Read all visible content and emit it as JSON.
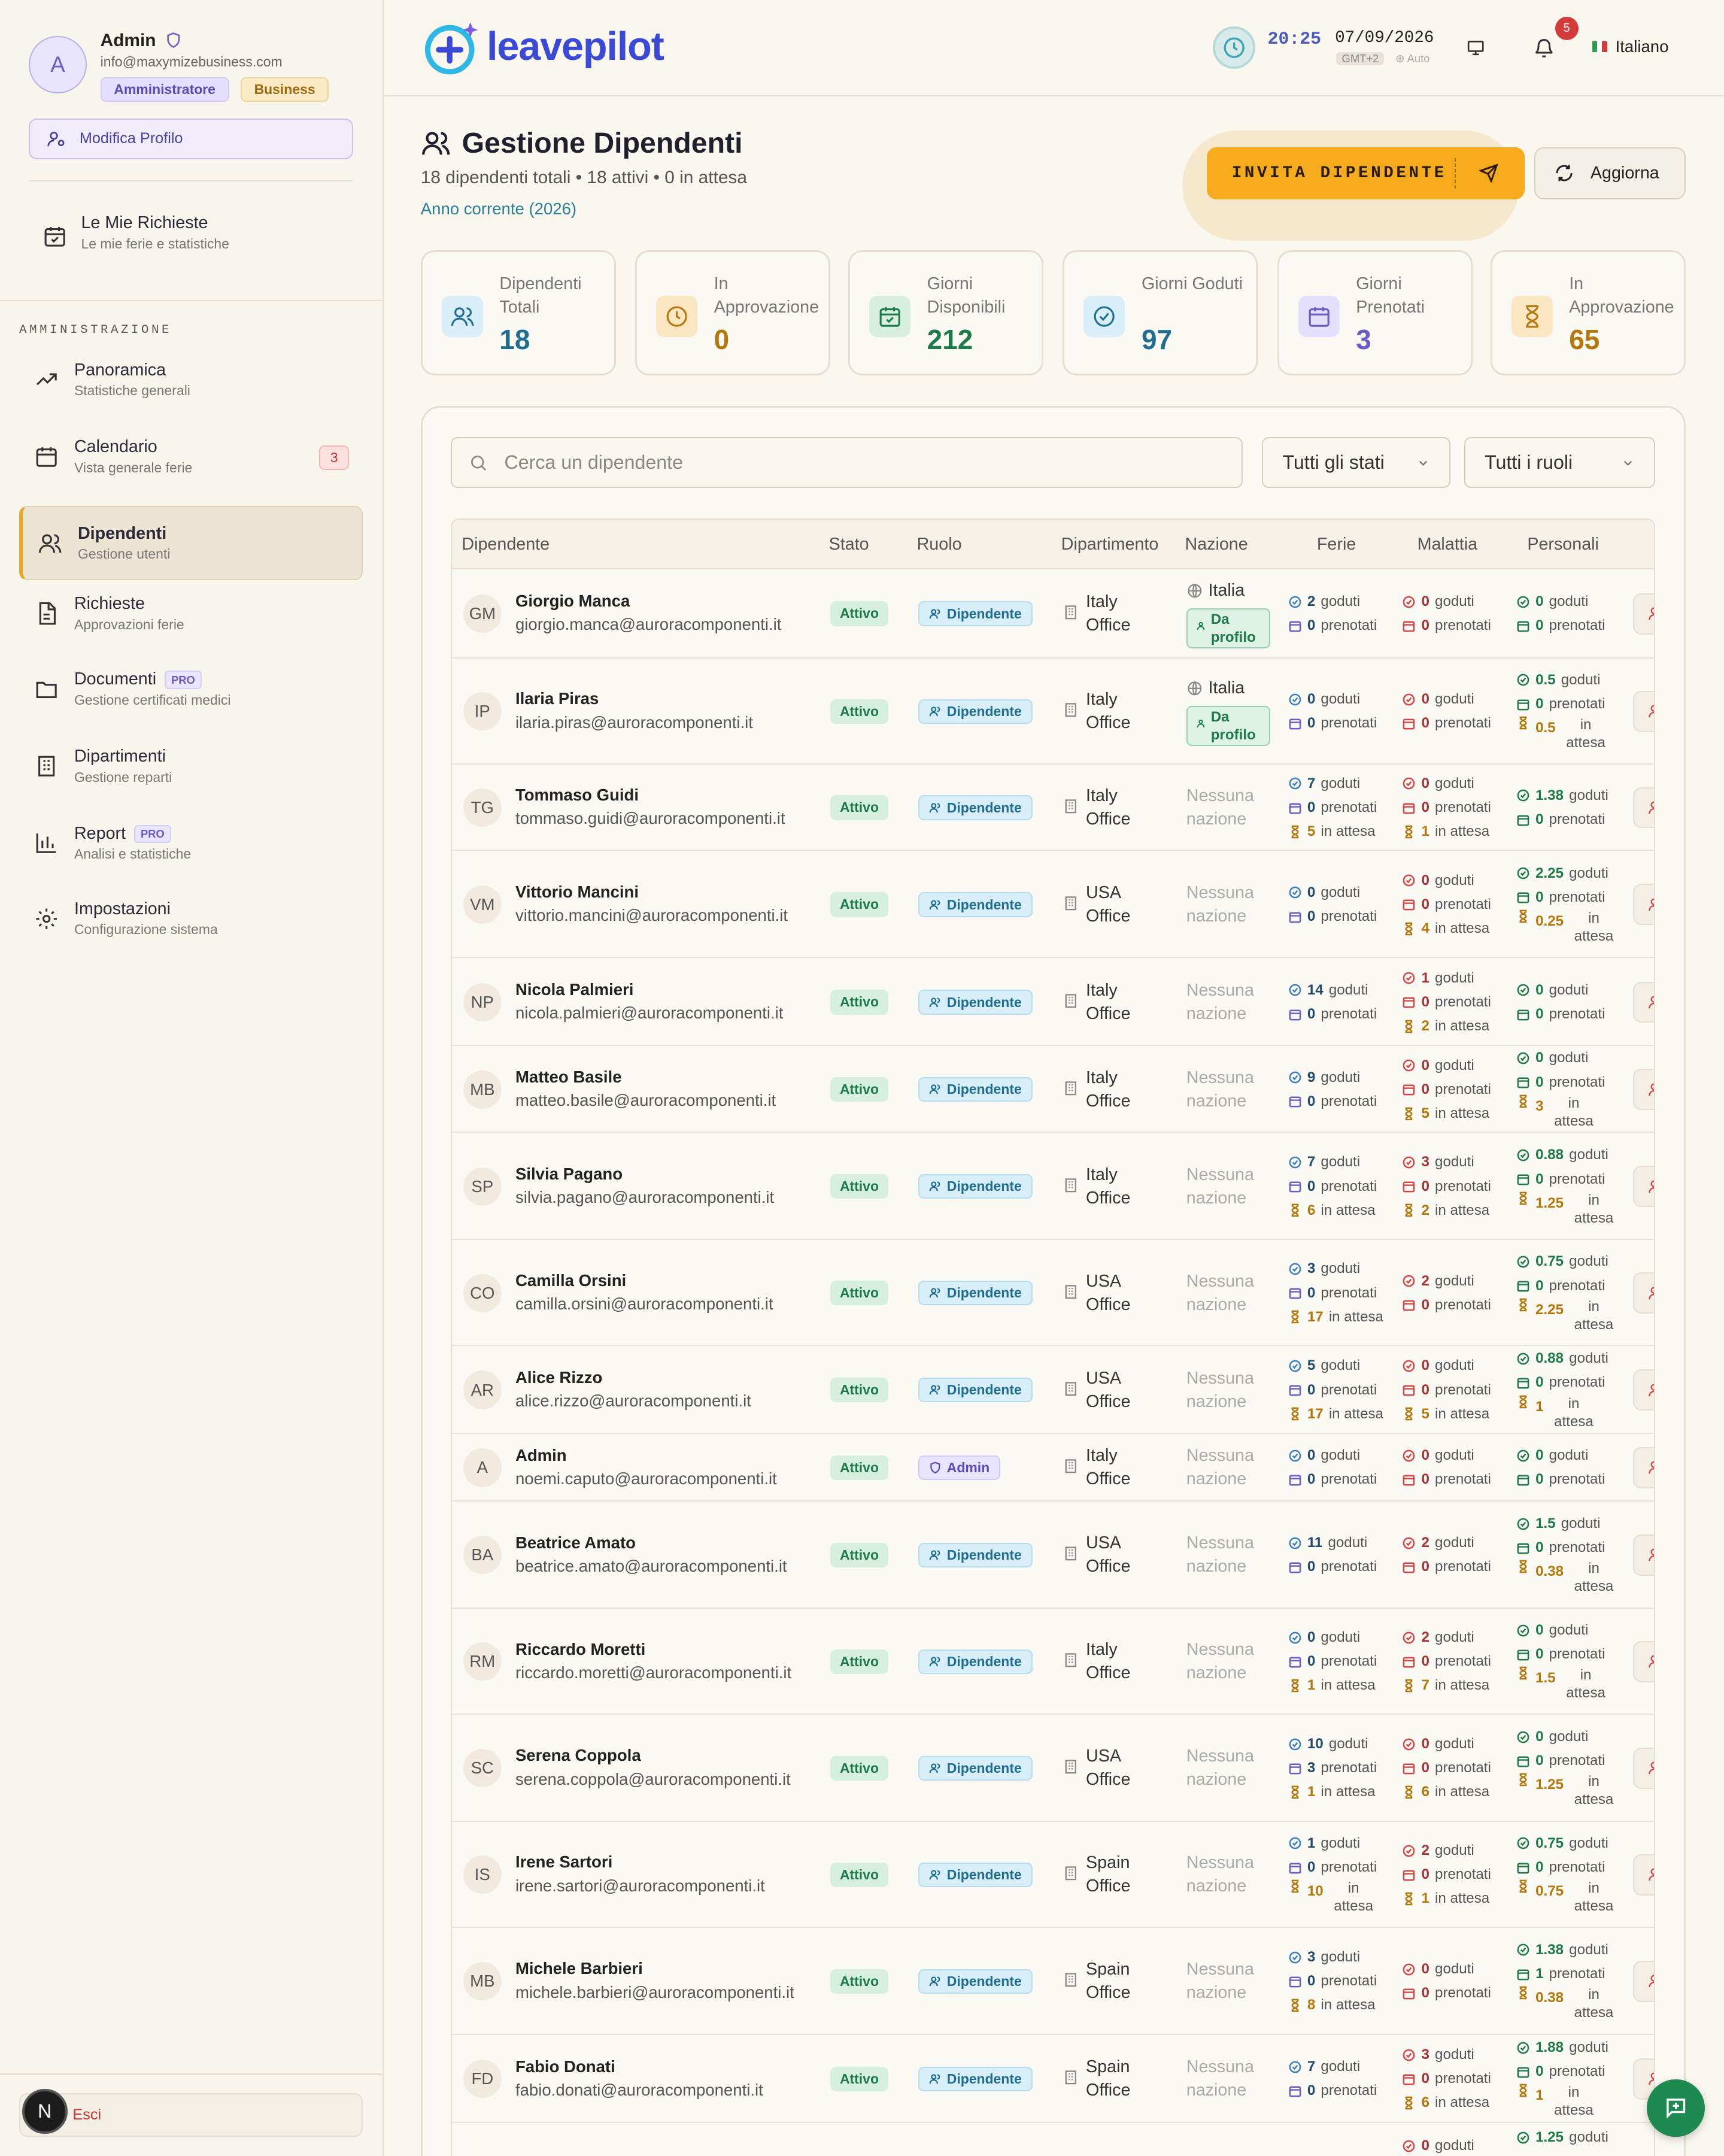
{
  "profile": {
    "initial": "A",
    "name": "Admin",
    "email": "info@maxymizebusiness.com",
    "role_tag": "Amministratore",
    "plan_tag": "Business",
    "edit_label": "Modifica Profilo"
  },
  "my_requests": {
    "title": "Le Mie Richieste",
    "subtitle": "Le mie ferie e statistiche"
  },
  "admin_heading": "AMMINISTRAZIONE",
  "nav": [
    {
      "title": "Panoramica",
      "subtitle": "Statistiche generali",
      "icon": "trending-up-icon"
    },
    {
      "title": "Calendario",
      "subtitle": "Vista generale ferie",
      "icon": "calendar-icon",
      "badge": "3"
    },
    {
      "title": "Dipendenti",
      "subtitle": "Gestione utenti",
      "icon": "users-icon",
      "active": true
    },
    {
      "title": "Richieste",
      "subtitle": "Approvazioni ferie",
      "icon": "document-icon"
    },
    {
      "title": "Documenti",
      "subtitle": "Gestione certificati medici",
      "icon": "folder-icon",
      "pro": "PRO"
    },
    {
      "title": "Dipartimenti",
      "subtitle": "Gestione reparti",
      "icon": "building-icon"
    },
    {
      "title": "Report",
      "subtitle": "Analisi e statistiche",
      "icon": "bar-chart-icon",
      "pro": "PRO"
    },
    {
      "title": "Impostazioni",
      "subtitle": "Configurazione sistema",
      "icon": "gear-icon"
    }
  ],
  "logout_label": "Esci",
  "n_badge": "N",
  "topbar": {
    "logo": "leavepilot",
    "time": "20:25",
    "date": "07/09/2026",
    "tz": "GMT+2",
    "tz_mode": "Auto",
    "notifications": "5",
    "language": "Italiano"
  },
  "page": {
    "title": "Gestione Dipendenti",
    "subtitle": "18 dipendenti totali • 18 attivi • 0 in attesa",
    "year": "Anno corrente (2026)",
    "invite_label": "INVITA DIPENDENTE",
    "refresh_label": "Aggiorna"
  },
  "stats": [
    {
      "label": "Dipendenti Totali",
      "value": "18",
      "color": "#1f6d90",
      "bg": "#d8eef8",
      "icon": "users-icon"
    },
    {
      "label": "In Approvazione",
      "value": "0",
      "color": "#b5760a",
      "bg": "#fbe6c2",
      "icon": "clock-icon"
    },
    {
      "label": "Giorni Disponibili",
      "value": "212",
      "color": "#1d7a4a",
      "bg": "#d6efdf",
      "icon": "calendar-check-icon"
    },
    {
      "label": "Giorni Goduti",
      "value": "97",
      "color": "#1f6d90",
      "bg": "#d8eef8",
      "icon": "check-circle-icon"
    },
    {
      "label": "Giorni Prenotati",
      "value": "3",
      "color": "#6a5bc7",
      "bg": "#e6e0ff",
      "icon": "calendar-icon"
    },
    {
      "label": "In Approvazione",
      "value": "65",
      "color": "#b5760a",
      "bg": "#fbe6c2",
      "icon": "hourglass-icon"
    }
  ],
  "filters": {
    "search_placeholder": "Cerca un dipendente",
    "status": "Tutti gli stati",
    "role": "Tutti i ruoli"
  },
  "columns": [
    "Dipendente",
    "Stato",
    "Ruolo",
    "Dipartimento",
    "Nazione",
    "Ferie",
    "Malattia",
    "Personali"
  ],
  "labels": {
    "active": "Attivo",
    "goduti": "goduti",
    "prenotati": "prenotati",
    "in_attesa": "in attesa",
    "no_nation": [
      "Nessuna",
      "nazione"
    ],
    "profile_pill": [
      "Da",
      "profilo"
    ],
    "office": "Office"
  },
  "employees": [
    {
      "ini": "GM",
      "name": "Giorgio Manca",
      "email": "giorgio.manca@auroracomponenti.it",
      "role": "Dipendente",
      "dept": "Italy",
      "nation": "Italia",
      "ferie": {
        "g": "2",
        "p": "0"
      },
      "sick": {
        "g": "0",
        "p": "0"
      },
      "pers": {
        "g": "0",
        "p": "0"
      }
    },
    {
      "ini": "IP",
      "name": "Ilaria Piras",
      "email": "ilaria.piras@auroracomponenti.it",
      "role": "Dipendente",
      "dept": "Italy",
      "nation": "Italia",
      "ferie": {
        "g": "0",
        "p": "0"
      },
      "sick": {
        "g": "0",
        "p": "0"
      },
      "pers": {
        "g": "0.5",
        "p": "0",
        "w": "0.5"
      }
    },
    {
      "ini": "TG",
      "name": "Tommaso Guidi",
      "email": "tommaso.guidi@auroracomponenti.it",
      "role": "Dipendente",
      "dept": "Italy",
      "ferie": {
        "g": "7",
        "p": "0",
        "w": "5"
      },
      "sick": {
        "g": "0",
        "p": "0",
        "w": "1"
      },
      "pers": {
        "g": "1.38",
        "p": "0"
      }
    },
    {
      "ini": "VM",
      "name": "Vittorio Mancini",
      "email": "vittorio.mancini@auroracomponenti.it",
      "role": "Dipendente",
      "dept": "USA",
      "ferie": {
        "g": "0",
        "p": "0"
      },
      "sick": {
        "g": "0",
        "p": "0",
        "w": "4"
      },
      "pers": {
        "g": "2.25",
        "p": "0",
        "w": "0.25"
      }
    },
    {
      "ini": "NP",
      "name": "Nicola Palmieri",
      "email": "nicola.palmieri@auroracomponenti.it",
      "role": "Dipendente",
      "dept": "Italy",
      "ferie": {
        "g": "14",
        "p": "0"
      },
      "sick": {
        "g": "1",
        "p": "0",
        "w": "2"
      },
      "pers": {
        "g": "0",
        "p": "0"
      }
    },
    {
      "ini": "MB",
      "name": "Matteo Basile",
      "email": "matteo.basile@auroracomponenti.it",
      "role": "Dipendente",
      "dept": "Italy",
      "ferie": {
        "g": "9",
        "p": "0"
      },
      "sick": {
        "g": "0",
        "p": "0",
        "w": "5"
      },
      "pers": {
        "g": "0",
        "p": "0",
        "w": "3"
      }
    },
    {
      "ini": "SP",
      "name": "Silvia Pagano",
      "email": "silvia.pagano@auroracomponenti.it",
      "role": "Dipendente",
      "dept": "Italy",
      "ferie": {
        "g": "7",
        "p": "0",
        "w": "6"
      },
      "sick": {
        "g": "3",
        "p": "0",
        "w": "2"
      },
      "pers": {
        "g": "0.88",
        "p": "0",
        "w": "1.25"
      }
    },
    {
      "ini": "CO",
      "name": "Camilla Orsini",
      "email": "camilla.orsini@auroracomponenti.it",
      "role": "Dipendente",
      "dept": "USA",
      "ferie": {
        "g": "3",
        "p": "0",
        "w": "17"
      },
      "sick": {
        "g": "2",
        "p": "0"
      },
      "pers": {
        "g": "0.75",
        "p": "0",
        "w": "2.25"
      }
    },
    {
      "ini": "AR",
      "name": "Alice Rizzo",
      "email": "alice.rizzo@auroracomponenti.it",
      "role": "Dipendente",
      "dept": "USA",
      "ferie": {
        "g": "5",
        "p": "0",
        "w": "17"
      },
      "sick": {
        "g": "0",
        "p": "0",
        "w": "5"
      },
      "pers": {
        "g": "0.88",
        "p": "0",
        "w": "1"
      }
    },
    {
      "ini": "A",
      "name": "Admin",
      "email": "noemi.caputo@auroracomponenti.it",
      "role": "Admin",
      "dept": "Italy",
      "ferie": {
        "g": "0",
        "p": "0"
      },
      "sick": {
        "g": "0",
        "p": "0"
      },
      "pers": {
        "g": "0",
        "p": "0"
      }
    },
    {
      "ini": "BA",
      "name": "Beatrice Amato",
      "email": "beatrice.amato@auroracomponenti.it",
      "role": "Dipendente",
      "dept": "USA",
      "ferie": {
        "g": "11",
        "p": "0"
      },
      "sick": {
        "g": "2",
        "p": "0"
      },
      "pers": {
        "g": "1.5",
        "p": "0",
        "w": "0.38"
      }
    },
    {
      "ini": "RM",
      "name": "Riccardo Moretti",
      "email": "riccardo.moretti@auroracomponenti.it",
      "role": "Dipendente",
      "dept": "Italy",
      "ferie": {
        "g": "0",
        "p": "0",
        "w": "1"
      },
      "sick": {
        "g": "2",
        "p": "0",
        "w": "7"
      },
      "pers": {
        "g": "0",
        "p": "0",
        "w": "1.5"
      }
    },
    {
      "ini": "SC",
      "name": "Serena Coppola",
      "email": "serena.coppola@auroracomponenti.it",
      "role": "Dipendente",
      "dept": "USA",
      "ferie": {
        "g": "10",
        "p": "3",
        "w": "1"
      },
      "sick": {
        "g": "0",
        "p": "0",
        "w": "6"
      },
      "pers": {
        "g": "0",
        "p": "0",
        "w": "1.25"
      }
    },
    {
      "ini": "IS",
      "name": "Irene Sartori",
      "email": "irene.sartori@auroracomponenti.it",
      "role": "Dipendente",
      "dept": "Spain",
      "ferie": {
        "g": "1",
        "p": "0",
        "w": "10"
      },
      "sick": {
        "g": "2",
        "p": "0",
        "w": "1"
      },
      "pers": {
        "g": "0.75",
        "p": "0",
        "w": "0.75"
      }
    },
    {
      "ini": "MB",
      "name": "Michele Barbieri",
      "email": "michele.barbieri@auroracomponenti.it",
      "role": "Dipendente",
      "dept": "Spain",
      "ferie": {
        "g": "3",
        "p": "0",
        "w": "8"
      },
      "sick": {
        "g": "0",
        "p": "0"
      },
      "pers": {
        "g": "1.38",
        "p": "1",
        "w": "0.38"
      }
    },
    {
      "ini": "FD",
      "name": "Fabio Donati",
      "email": "fabio.donati@auroracomponenti.it",
      "role": "Dipendente",
      "dept": "Spain",
      "ferie": {
        "g": "7",
        "p": "0"
      },
      "sick": {
        "g": "3",
        "p": "0",
        "w": "6"
      },
      "pers": {
        "g": "1.88",
        "p": "0",
        "w": "1"
      }
    },
    {
      "partial": true,
      "sick": {
        "g": "0"
      },
      "pers": {
        "g": "1.25"
      }
    }
  ]
}
